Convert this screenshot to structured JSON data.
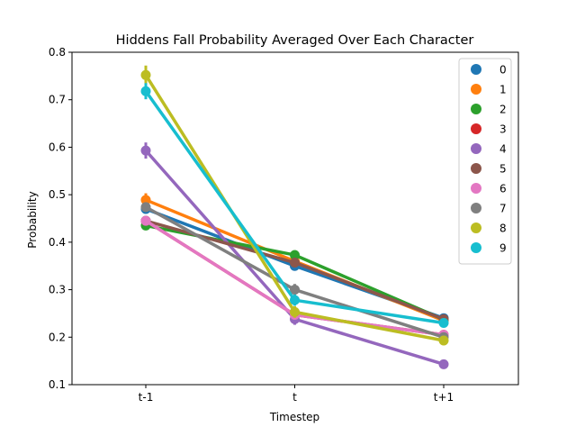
{
  "chart_data": {
    "type": "line",
    "title": "Hiddens Fall Probability Averaged Over Each Character",
    "xlabel": "Timestep",
    "ylabel": "Probability",
    "categories": [
      "t-1",
      "t",
      "t+1"
    ],
    "ylim": [
      0.1,
      0.8
    ],
    "yticks": [
      0.1,
      0.2,
      0.3,
      0.4,
      0.5,
      0.6,
      0.7,
      0.8
    ],
    "legend_position": "top-right",
    "grid": false,
    "series": [
      {
        "name": "0",
        "color": "#1f77b4",
        "values": [
          0.47,
          0.35,
          0.24
        ],
        "err": [
          0.01,
          0.01,
          0.006
        ]
      },
      {
        "name": "1",
        "color": "#ff7f0e",
        "values": [
          0.489,
          0.36,
          0.235
        ],
        "err": [
          0.014,
          0.01,
          0.006
        ]
      },
      {
        "name": "2",
        "color": "#2ca02c",
        "values": [
          0.435,
          0.373,
          0.237
        ],
        "err": [
          0.008,
          0.01,
          0.006
        ]
      },
      {
        "name": "3",
        "color": "#d62728",
        "values": [
          0.445,
          0.247,
          0.205
        ],
        "err": [
          0.01,
          0.01,
          0.008
        ]
      },
      {
        "name": "4",
        "color": "#9467bd",
        "values": [
          0.593,
          0.238,
          0.143
        ],
        "err": [
          0.017,
          0.012,
          0.008
        ]
      },
      {
        "name": "5",
        "color": "#8c564b",
        "values": [
          0.445,
          0.357,
          0.238
        ],
        "err": [
          0.01,
          0.01,
          0.006
        ]
      },
      {
        "name": "6",
        "color": "#e377c2",
        "values": [
          0.445,
          0.247,
          0.205
        ],
        "err": [
          0.01,
          0.01,
          0.008
        ]
      },
      {
        "name": "7",
        "color": "#7f7f7f",
        "values": [
          0.474,
          0.3,
          0.2
        ],
        "err": [
          0.01,
          0.012,
          0.008
        ]
      },
      {
        "name": "8",
        "color": "#bcbd22",
        "values": [
          0.752,
          0.253,
          0.193
        ],
        "err": [
          0.02,
          0.012,
          0.01
        ]
      },
      {
        "name": "9",
        "color": "#17becf",
        "values": [
          0.718,
          0.278,
          0.23
        ],
        "err": [
          0.017,
          0.012,
          0.008
        ]
      }
    ]
  }
}
